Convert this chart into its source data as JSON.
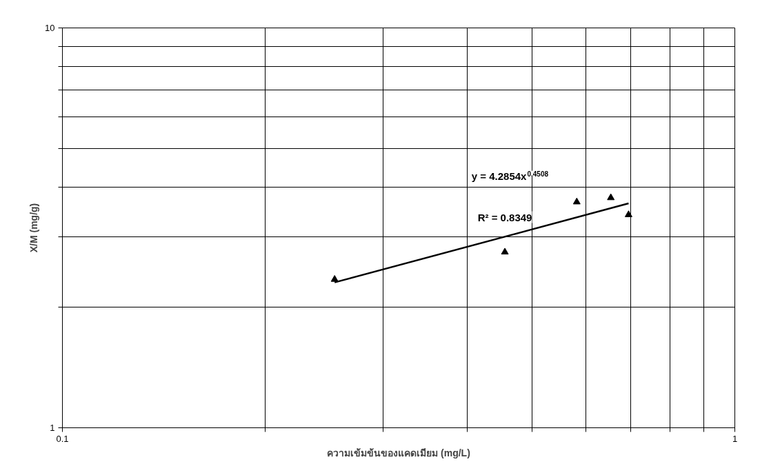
{
  "chart_data": {
    "type": "scatter",
    "xlabel": "ความเข้มข้นของแคดเมียม (mg/L)",
    "ylabel": "X/M (mg/g)",
    "log": "xy",
    "grid": true,
    "marker": "triangle",
    "xlim": [
      0.1,
      1
    ],
    "ylim": [
      1,
      10
    ],
    "xticks": [
      0.1,
      {
        "value": 0.2,
        "label": null
      },
      {
        "value": 0.3,
        "label": null
      },
      {
        "value": 0.4,
        "label": null
      },
      {
        "value": 0.5,
        "label": null
      },
      {
        "value": 0.6,
        "label": null
      },
      {
        "value": 0.7,
        "label": null
      },
      {
        "value": 0.8,
        "label": null
      },
      {
        "value": 0.9,
        "label": null
      },
      1
    ],
    "yticks": [
      1,
      {
        "value": 2,
        "label": null
      },
      {
        "value": 3,
        "label": null
      },
      {
        "value": 4,
        "label": null
      },
      {
        "value": 5,
        "label": null
      },
      {
        "value": 6,
        "label": null
      },
      {
        "value": 7,
        "label": null
      },
      {
        "value": 8,
        "label": null
      },
      {
        "value": 9,
        "label": null
      },
      10
    ],
    "series": [
      {
        "type": "scatter",
        "color": "#000000",
        "x": [
          0.254,
          0.455,
          0.582,
          0.654,
          0.695
        ],
        "values": [
          2.35,
          2.75,
          3.67,
          3.76,
          3.41
        ]
      },
      {
        "type": "line",
        "color": "#000000",
        "marker": "none",
        "x": [
          0.254,
          0.695
        ],
        "values": [
          2.31,
          3.64
        ]
      }
    ],
    "annotations": [
      "y = 4.2854x$^{0.4508}$",
      "R² = 0.8349"
    ]
  }
}
